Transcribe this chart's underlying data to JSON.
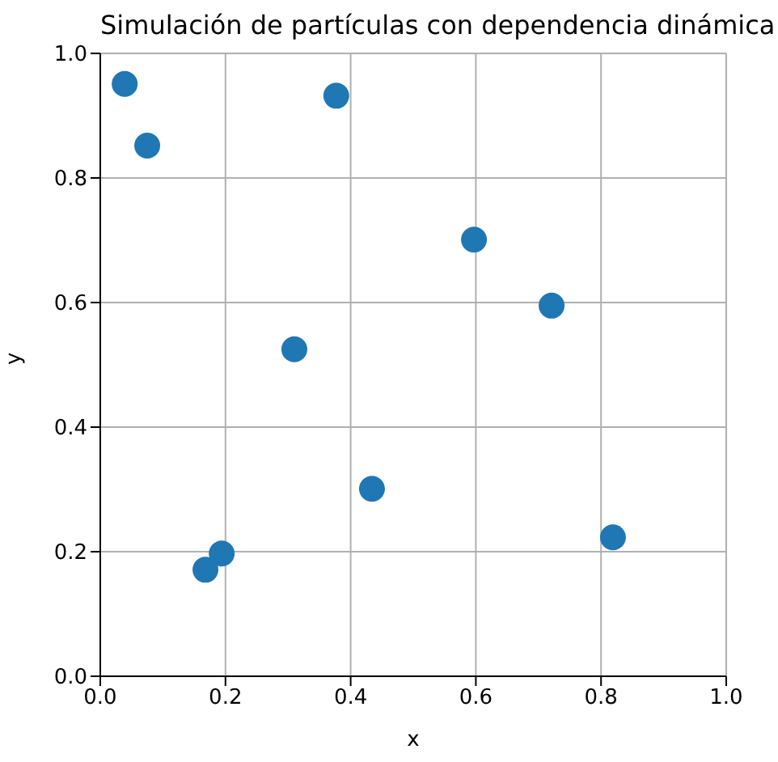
{
  "chart_data": {
    "type": "scatter",
    "title": "Simulación de partículas con dependencia dinámica",
    "xlabel": "x",
    "ylabel": "y",
    "x": [
      0.039,
      0.075,
      0.377,
      0.597,
      0.721,
      0.31,
      0.434,
      0.168,
      0.194,
      0.819
    ],
    "series": [
      {
        "color": "#1f77b4",
        "values": [
          0.951,
          0.852,
          0.932,
          0.701,
          0.595,
          0.525,
          0.301,
          0.171,
          0.197,
          0.223
        ]
      }
    ],
    "xlim": [
      0,
      1
    ],
    "ylim": [
      0,
      1
    ],
    "xticks": [
      {
        "value": 0,
        "label": "0.0"
      },
      0.2,
      0.4,
      0.6,
      0.8,
      {
        "value": 1,
        "label": "1.0"
      }
    ],
    "yticks": [
      {
        "value": 0,
        "label": "0.0"
      },
      0.2,
      0.4,
      0.6,
      0.8,
      {
        "value": 1,
        "label": "1.0"
      }
    ],
    "grid": true,
    "marker": "circle"
  }
}
